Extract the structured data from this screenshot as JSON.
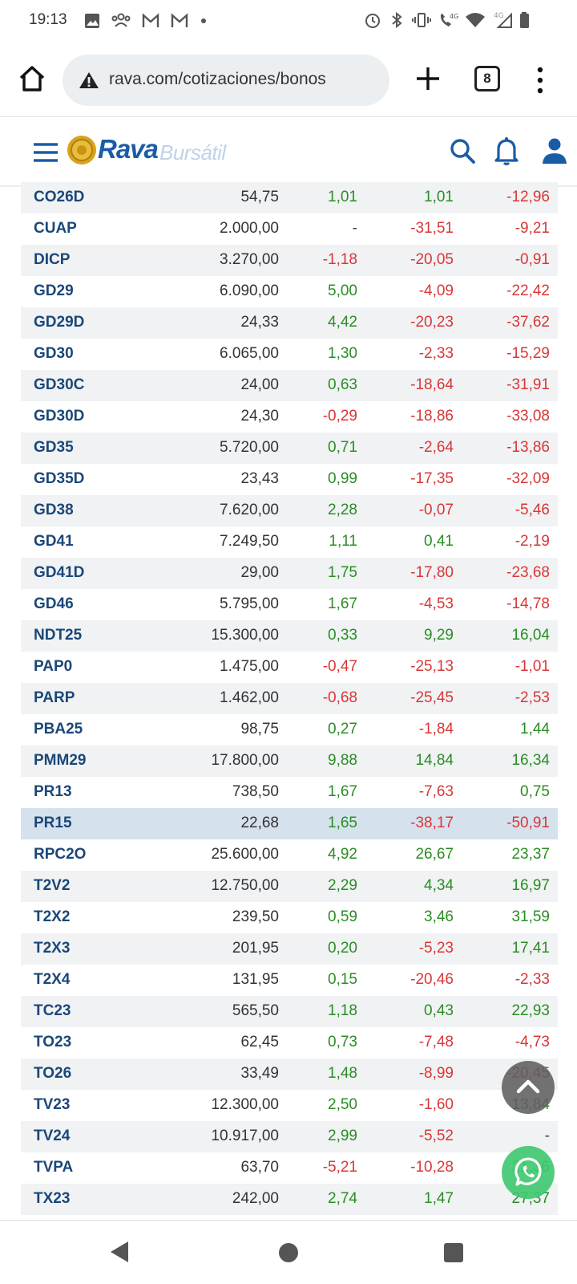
{
  "status_bar": {
    "time": "19:13",
    "left_icons": [
      "image-icon",
      "group-icon",
      "gmail-icon",
      "gmail-icon",
      "dot-icon"
    ],
    "right_icons": [
      "alarm-icon",
      "bluetooth-icon",
      "vibrate-icon",
      "call-4g-icon",
      "wifi-icon",
      "signal-4g-icon",
      "battery-icon"
    ]
  },
  "browser": {
    "url": "rava.com/cotizaciones/bonos",
    "tab_count": "8"
  },
  "site": {
    "logo_main": "Rava",
    "logo_sub": "Bursátil"
  },
  "table": {
    "rows": [
      {
        "symbol": "CO26D",
        "price": "54,75",
        "d1": "1,01",
        "d2": "1,01",
        "d3": "-12,96"
      },
      {
        "symbol": "CUAP",
        "price": "2.000,00",
        "d1": "-",
        "d2": "-31,51",
        "d3": "-9,21"
      },
      {
        "symbol": "DICP",
        "price": "3.270,00",
        "d1": "-1,18",
        "d2": "-20,05",
        "d3": "-0,91"
      },
      {
        "symbol": "GD29",
        "price": "6.090,00",
        "d1": "5,00",
        "d2": "-4,09",
        "d3": "-22,42"
      },
      {
        "symbol": "GD29D",
        "price": "24,33",
        "d1": "4,42",
        "d2": "-20,23",
        "d3": "-37,62"
      },
      {
        "symbol": "GD30",
        "price": "6.065,00",
        "d1": "1,30",
        "d2": "-2,33",
        "d3": "-15,29"
      },
      {
        "symbol": "GD30C",
        "price": "24,00",
        "d1": "0,63",
        "d2": "-18,64",
        "d3": "-31,91"
      },
      {
        "symbol": "GD30D",
        "price": "24,30",
        "d1": "-0,29",
        "d2": "-18,86",
        "d3": "-33,08"
      },
      {
        "symbol": "GD35",
        "price": "5.720,00",
        "d1": "0,71",
        "d2": "-2,64",
        "d3": "-13,86"
      },
      {
        "symbol": "GD35D",
        "price": "23,43",
        "d1": "0,99",
        "d2": "-17,35",
        "d3": "-32,09"
      },
      {
        "symbol": "GD38",
        "price": "7.620,00",
        "d1": "2,28",
        "d2": "-0,07",
        "d3": "-5,46"
      },
      {
        "symbol": "GD41",
        "price": "7.249,50",
        "d1": "1,11",
        "d2": "0,41",
        "d3": "-2,19"
      },
      {
        "symbol": "GD41D",
        "price": "29,00",
        "d1": "1,75",
        "d2": "-17,80",
        "d3": "-23,68"
      },
      {
        "symbol": "GD46",
        "price": "5.795,00",
        "d1": "1,67",
        "d2": "-4,53",
        "d3": "-14,78"
      },
      {
        "symbol": "NDT25",
        "price": "15.300,00",
        "d1": "0,33",
        "d2": "9,29",
        "d3": "16,04"
      },
      {
        "symbol": "PAP0",
        "price": "1.475,00",
        "d1": "-0,47",
        "d2": "-25,13",
        "d3": "-1,01"
      },
      {
        "symbol": "PARP",
        "price": "1.462,00",
        "d1": "-0,68",
        "d2": "-25,45",
        "d3": "-2,53"
      },
      {
        "symbol": "PBA25",
        "price": "98,75",
        "d1": "0,27",
        "d2": "-1,84",
        "d3": "1,44"
      },
      {
        "symbol": "PMM29",
        "price": "17.800,00",
        "d1": "9,88",
        "d2": "14,84",
        "d3": "16,34"
      },
      {
        "symbol": "PR13",
        "price": "738,50",
        "d1": "1,67",
        "d2": "-7,63",
        "d3": "0,75"
      },
      {
        "symbol": "PR15",
        "price": "22,68",
        "d1": "1,65",
        "d2": "-38,17",
        "d3": "-50,91"
      },
      {
        "symbol": "RPC2O",
        "price": "25.600,00",
        "d1": "4,92",
        "d2": "26,67",
        "d3": "23,37"
      },
      {
        "symbol": "T2V2",
        "price": "12.750,00",
        "d1": "2,29",
        "d2": "4,34",
        "d3": "16,97"
      },
      {
        "symbol": "T2X2",
        "price": "239,50",
        "d1": "0,59",
        "d2": "3,46",
        "d3": "31,59"
      },
      {
        "symbol": "T2X3",
        "price": "201,95",
        "d1": "0,20",
        "d2": "-5,23",
        "d3": "17,41"
      },
      {
        "symbol": "T2X4",
        "price": "131,95",
        "d1": "0,15",
        "d2": "-20,46",
        "d3": "-2,33"
      },
      {
        "symbol": "TC23",
        "price": "565,50",
        "d1": "1,18",
        "d2": "0,43",
        "d3": "22,93"
      },
      {
        "symbol": "TO23",
        "price": "62,45",
        "d1": "0,73",
        "d2": "-7,48",
        "d3": "-4,73"
      },
      {
        "symbol": "TO26",
        "price": "33,49",
        "d1": "1,48",
        "d2": "-8,99",
        "d3": "-20,45"
      },
      {
        "symbol": "TV23",
        "price": "12.300,00",
        "d1": "2,50",
        "d2": "-1,60",
        "d3": "13,84"
      },
      {
        "symbol": "TV24",
        "price": "10.917,00",
        "d1": "2,99",
        "d2": "-5,52",
        "d3": "-"
      },
      {
        "symbol": "TVPA",
        "price": "63,70",
        "d1": "-5,21",
        "d2": "-10,28",
        "d3": "21,36"
      },
      {
        "symbol": "TX23",
        "price": "242,00",
        "d1": "2,74",
        "d2": "1,47",
        "d3": "27,37"
      }
    ],
    "highlighted_symbol": "PR15"
  },
  "colors": {
    "positive": "#2a8d24",
    "negative": "#d93737",
    "brand": "#1a5da7",
    "highlight_row": "#d5e2ee"
  }
}
